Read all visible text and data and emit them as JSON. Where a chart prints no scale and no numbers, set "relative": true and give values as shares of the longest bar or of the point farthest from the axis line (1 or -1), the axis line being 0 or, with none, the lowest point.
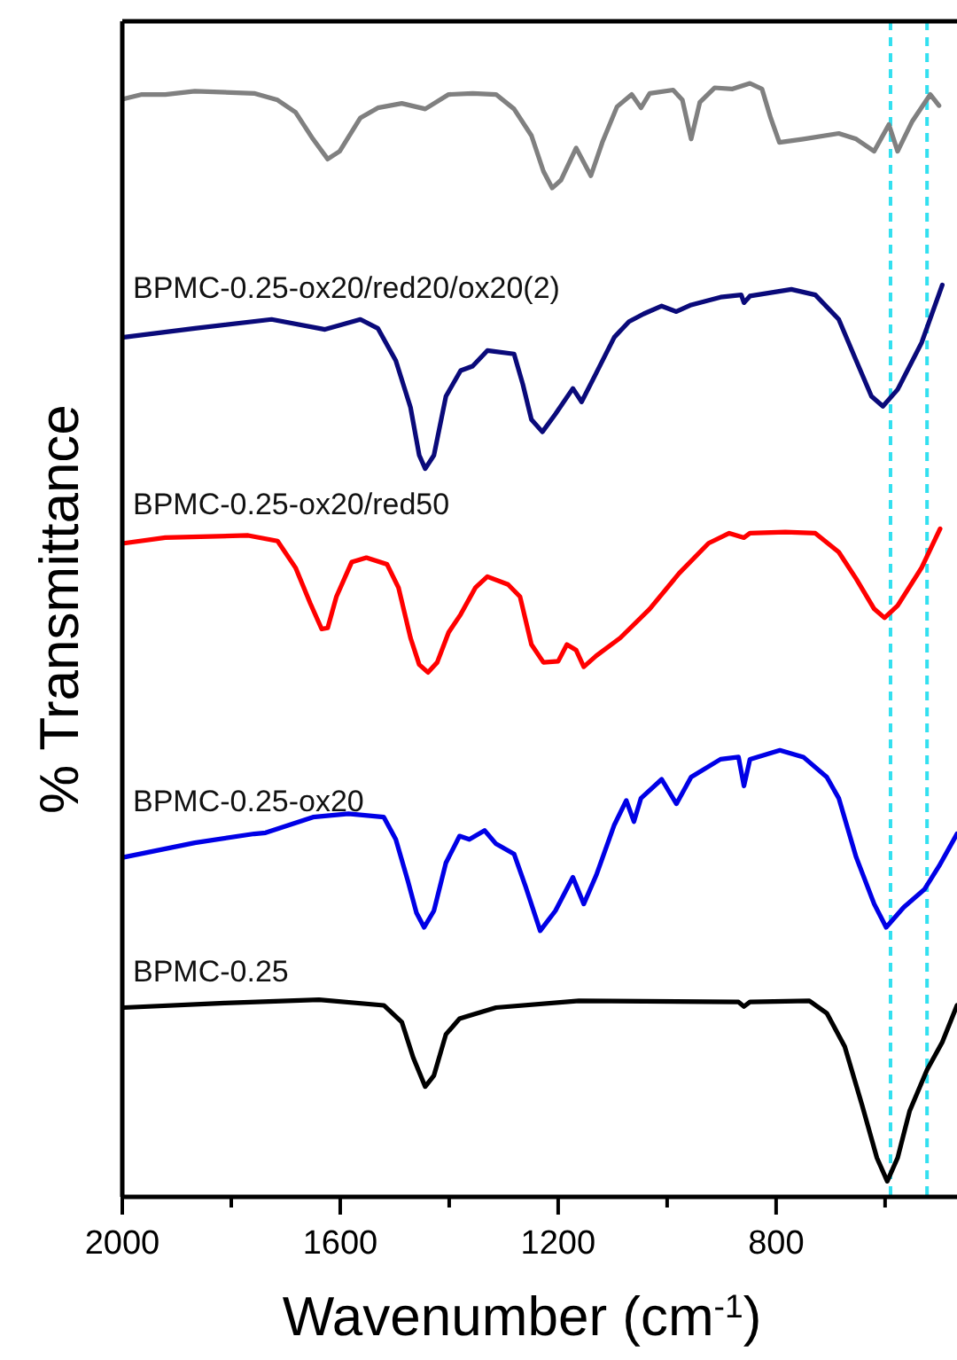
{
  "chart_data": {
    "type": "line",
    "xlabel": "Wavenumber (cm$^{-1}$)",
    "ylabel": "% Transmittance",
    "relative": true,
    "xlim": [
      2000,
      468
    ],
    "xticks": [
      2000,
      {
        "value": 1800,
        "label": null
      },
      1600,
      {
        "value": 1400,
        "label": null
      },
      1200,
      {
        "value": 1000,
        "label": null
      },
      800,
      {
        "value": 600,
        "label": null
      }
    ],
    "grid": false,
    "line_style": "solid",
    "marker": "none",
    "tick_labels": "x",
    "ref_lines": [
      {
        "axis": "x",
        "value": 590,
        "color": "#33e0f0",
        "line_style": "dashed"
      },
      {
        "axis": "x",
        "value": 523,
        "color": "#33e0f0",
        "line_style": "dashed"
      }
    ],
    "series": [
      {
        "color": "#808080",
        "x": [
          1997,
          1964,
          1921,
          1867,
          1758,
          1715,
          1682,
          1650,
          1623,
          1601,
          1563,
          1531,
          1487,
          1444,
          1401,
          1357,
          1314,
          1281,
          1249,
          1227,
          1211,
          1195,
          1167,
          1140,
          1119,
          1092,
          1065,
          1048,
          1032,
          989,
          972,
          956,
          940,
          913,
          880,
          848,
          826,
          810,
          794,
          750,
          685,
          653,
          620,
          593,
          577,
          550,
          517,
          501
        ],
        "values": [
          0.986,
          0.99,
          0.99,
          0.993,
          0.991,
          0.985,
          0.974,
          0.95,
          0.932,
          0.939,
          0.969,
          0.978,
          0.982,
          0.977,
          0.99,
          0.991,
          0.99,
          0.977,
          0.953,
          0.921,
          0.906,
          0.913,
          0.942,
          0.917,
          0.947,
          0.979,
          0.99,
          0.978,
          0.991,
          0.994,
          0.985,
          0.95,
          0.983,
          0.996,
          0.995,
          1,
          0.995,
          0.969,
          0.947,
          0.95,
          0.955,
          0.95,
          0.939,
          0.963,
          0.939,
          0.966,
          0.99,
          0.98
        ]
      },
      {
        "name": "BPMC-0.25-ox20/red20/ox20(2)",
        "color": "#0a0a7a",
        "x": [
          1997,
          1867,
          1726,
          1628,
          1563,
          1531,
          1498,
          1471,
          1455,
          1444,
          1428,
          1406,
          1379,
          1357,
          1330,
          1281,
          1265,
          1249,
          1229,
          1205,
          1173,
          1157,
          1130,
          1097,
          1070,
          1043,
          1010,
          983,
          956,
          902,
          864,
          859,
          848,
          772,
          728,
          685,
          653,
          625,
          604,
          577,
          533,
          495
        ],
        "values": [
          0.772,
          0.78,
          0.788,
          0.779,
          0.788,
          0.78,
          0.751,
          0.709,
          0.666,
          0.654,
          0.666,
          0.719,
          0.742,
          0.746,
          0.76,
          0.757,
          0.73,
          0.698,
          0.687,
          0.703,
          0.726,
          0.714,
          0.74,
          0.772,
          0.786,
          0.793,
          0.8,
          0.795,
          0.801,
          0.808,
          0.81,
          0.803,
          0.809,
          0.815,
          0.81,
          0.788,
          0.751,
          0.719,
          0.71,
          0.725,
          0.767,
          0.819
        ]
      },
      {
        "name": "BPMC-0.25-ox20/red50",
        "color": "#ff0000",
        "x": [
          1997,
          1921,
          1769,
          1715,
          1682,
          1655,
          1634,
          1623,
          1607,
          1579,
          1552,
          1514,
          1493,
          1471,
          1455,
          1439,
          1422,
          1401,
          1379,
          1352,
          1330,
          1292,
          1270,
          1249,
          1227,
          1200,
          1184,
          1167,
          1153,
          1130,
          1086,
          1032,
          978,
          924,
          886,
          859,
          848,
          783,
          728,
          685,
          653,
          620,
          601,
          577,
          533,
          499
        ],
        "values": [
          0.587,
          0.592,
          0.594,
          0.589,
          0.565,
          0.533,
          0.51,
          0.511,
          0.539,
          0.57,
          0.574,
          0.568,
          0.547,
          0.502,
          0.478,
          0.471,
          0.48,
          0.507,
          0.523,
          0.547,
          0.557,
          0.55,
          0.539,
          0.496,
          0.48,
          0.481,
          0.496,
          0.491,
          0.476,
          0.486,
          0.502,
          0.528,
          0.56,
          0.587,
          0.596,
          0.592,
          0.596,
          0.597,
          0.596,
          0.579,
          0.555,
          0.528,
          0.52,
          0.531,
          0.565,
          0.6
        ]
      },
      {
        "name": "BPMC-0.25-ox20",
        "color": "#0000e6",
        "x": [
          1997,
          1867,
          1758,
          1737,
          1650,
          1585,
          1520,
          1498,
          1476,
          1460,
          1446,
          1428,
          1406,
          1381,
          1363,
          1335,
          1314,
          1281,
          1260,
          1233,
          1205,
          1173,
          1153,
          1130,
          1097,
          1075,
          1061,
          1048,
          1010,
          983,
          956,
          902,
          869,
          859,
          848,
          793,
          750,
          707,
          685,
          653,
          620,
          598,
          566,
          528,
          501,
          468
        ],
        "values": [
          0.305,
          0.318,
          0.326,
          0.327,
          0.341,
          0.344,
          0.341,
          0.321,
          0.284,
          0.255,
          0.242,
          0.257,
          0.3,
          0.324,
          0.321,
          0.329,
          0.317,
          0.308,
          0.279,
          0.239,
          0.257,
          0.287,
          0.263,
          0.289,
          0.334,
          0.356,
          0.337,
          0.358,
          0.375,
          0.353,
          0.377,
          0.393,
          0.395,
          0.369,
          0.393,
          0.401,
          0.395,
          0.377,
          0.358,
          0.305,
          0.263,
          0.242,
          0.26,
          0.276,
          0.297,
          0.326
        ]
      },
      {
        "name": "BPMC-0.25",
        "color": "#000000",
        "x": [
          1997,
          1812,
          1639,
          1520,
          1487,
          1466,
          1444,
          1428,
          1406,
          1381,
          1368,
          1314,
          1162,
          869,
          859,
          848,
          739,
          707,
          674,
          642,
          615,
          596,
          577,
          555,
          523,
          495,
          468
        ],
        "values": [
          0.17,
          0.174,
          0.177,
          0.172,
          0.157,
          0.125,
          0.099,
          0.109,
          0.146,
          0.16,
          0.162,
          0.17,
          0.176,
          0.175,
          0.171,
          0.175,
          0.176,
          0.165,
          0.135,
          0.082,
          0.035,
          0.014,
          0.035,
          0.077,
          0.114,
          0.139,
          0.172
        ]
      }
    ]
  }
}
